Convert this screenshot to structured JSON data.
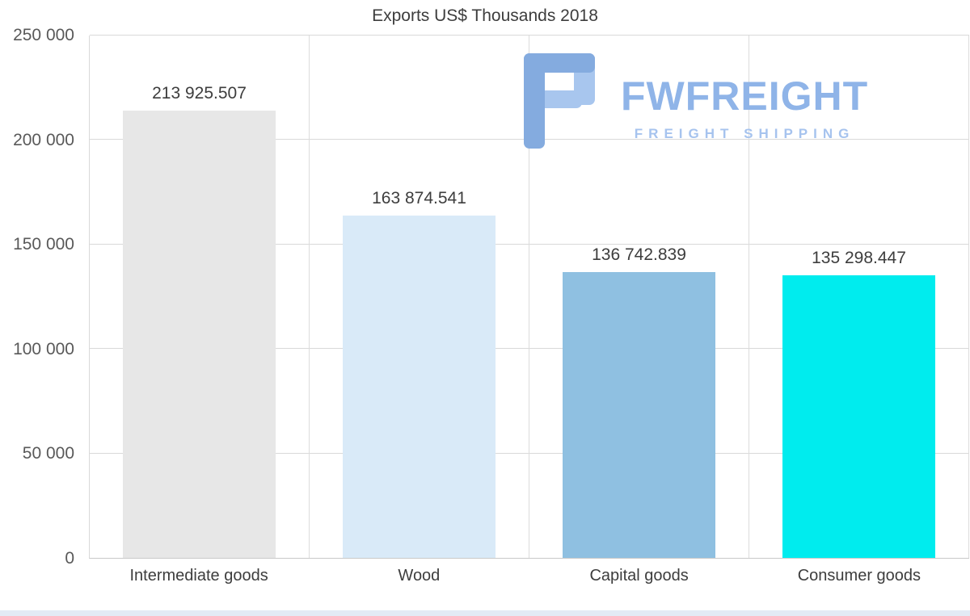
{
  "logo": {
    "brand": "FWFREIGHT",
    "tagline": "FREIGHT SHIPPING",
    "icon_color": "#7fa8e00",
    "colors": {
      "icon": "#84abdf",
      "icon_light": "#a8c6ee",
      "brand_text": "#8fb4e8",
      "tagline_text": "#a6c3ee"
    }
  },
  "chart_data": {
    "type": "bar",
    "title": "Exports US$ Thousands 2018",
    "categories": [
      "Intermediate goods",
      "Wood",
      "Capital goods",
      "Consumer goods"
    ],
    "values": [
      213925.507,
      163874.541,
      136742.839,
      135298.447
    ],
    "value_labels": [
      "213 925.507",
      "163 874.541",
      "136 742.839",
      "135 298.447"
    ],
    "bar_colors": [
      "#e7e7e7",
      "#d9eaf8",
      "#8fc0e1",
      "#00ecee"
    ],
    "xlabel": "",
    "ylabel": "",
    "ylim": [
      0,
      250000
    ],
    "ytick_values": [
      0,
      50000,
      100000,
      150000,
      200000,
      250000
    ],
    "ytick_labels": [
      "0",
      "50 000",
      "100 000",
      "150 000",
      "200 000",
      "250 000"
    ],
    "grid": "horizontal gridlines at 50k intervals plus vertical category separators",
    "legend_position": "none"
  }
}
